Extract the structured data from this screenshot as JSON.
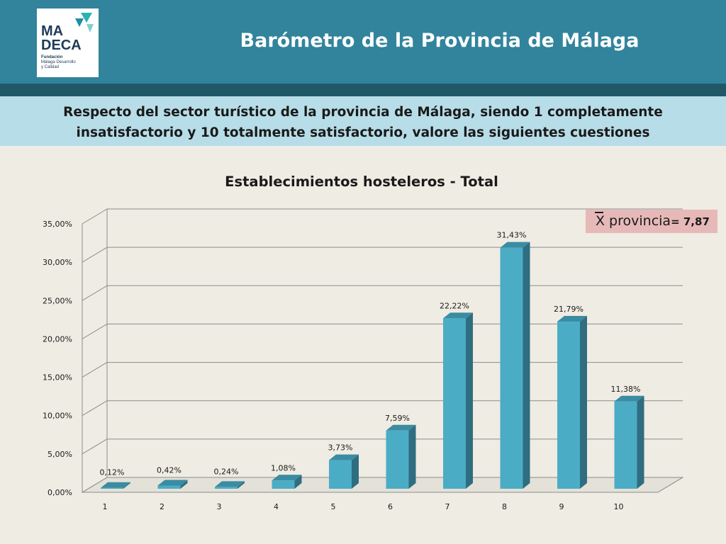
{
  "header": {
    "title": "Barómetro de la Provincia de Málaga",
    "logo": {
      "line1": "MA",
      "line2": "DECA",
      "sub1": "Fundación",
      "sub2": "Málaga Desarrollo",
      "sub3": "y Calidad"
    }
  },
  "question": "Respecto del sector turístico de la provincia de Málaga, siendo 1 completamente insatisfactorio y 10 totalmente satisfactorio, valore las siguientes cuestiones",
  "mean_box": {
    "label": "X provincia",
    "value": "= 7,87"
  },
  "colors": {
    "header": "#31849b",
    "header_band": "#215868",
    "question_band": "#b7dde8",
    "background": "#efece3",
    "bar_front": "#4bacc6",
    "bar_side": "#2f6d80",
    "bar_top": "#3a8ca2",
    "mean_box": "#e6b9b8"
  },
  "chart_data": {
    "type": "bar",
    "title": "Establecimientos hosteleros  - Total",
    "categories": [
      "1",
      "2",
      "3",
      "4",
      "5",
      "6",
      "7",
      "8",
      "9",
      "10"
    ],
    "values": [
      0.12,
      0.42,
      0.24,
      1.08,
      3.73,
      7.59,
      22.22,
      31.43,
      21.79,
      11.38
    ],
    "value_labels": [
      "0,12%",
      "0,42%",
      "0,24%",
      "1,08%",
      "3,73%",
      "7,59%",
      "22,22%",
      "31,43%",
      "21,79%",
      "11,38%"
    ],
    "y_ticks": [
      "0,00%",
      "5,00%",
      "10,00%",
      "15,00%",
      "20,00%",
      "25,00%",
      "30,00%",
      "35,00%"
    ],
    "ylim": [
      0,
      35
    ],
    "grid": true,
    "style": "3d-column",
    "xlabel": "",
    "ylabel": ""
  }
}
